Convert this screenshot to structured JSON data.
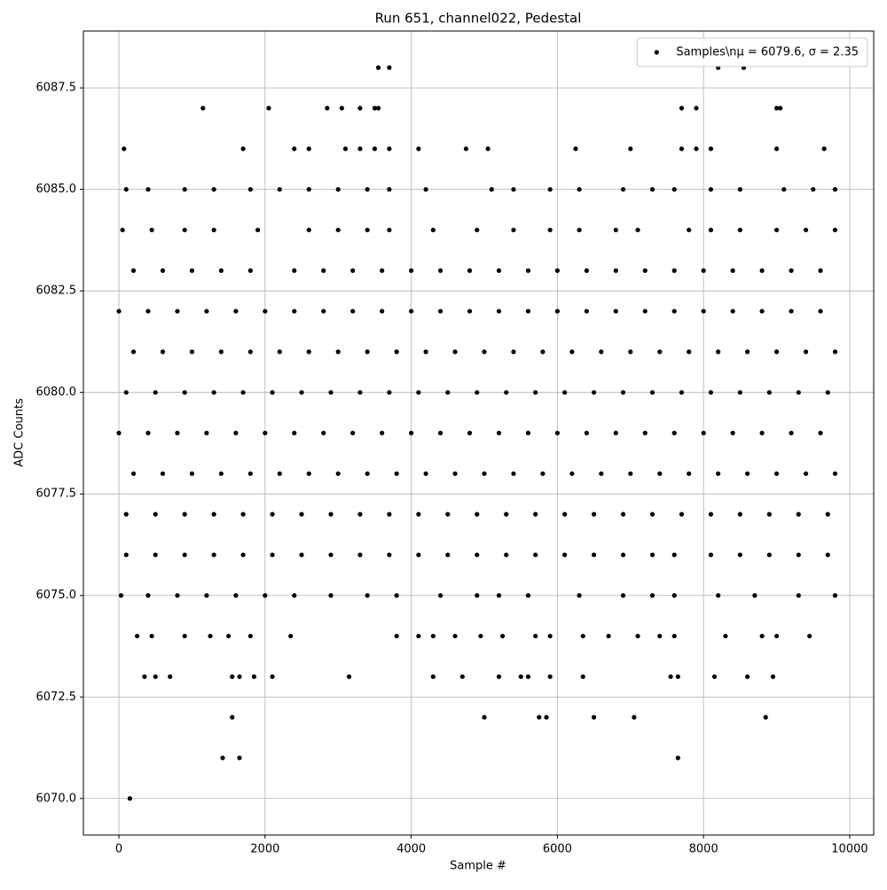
{
  "chart_data": {
    "type": "scatter",
    "title": "Run 651, channel022, Pedestal",
    "xlabel": "Sample #",
    "ylabel": "ADC Counts",
    "series": [
      {
        "name": "Samples\\nμ = 6079.6, σ = 2.35",
        "color": "#000000",
        "x": [
          0,
          400,
          800,
          1200,
          1600,
          2000,
          2400,
          2800,
          3200,
          3600,
          4000,
          4400,
          4800,
          5200,
          5600,
          6000,
          6400,
          6800,
          7200,
          7600,
          8000,
          8400,
          8800,
          9200,
          9600,
          200,
          600,
          1000,
          1400,
          1800,
          2200,
          2600,
          3000,
          3400,
          3800,
          4200,
          4600,
          5000,
          5400,
          5800,
          6200,
          6600,
          7000,
          7400,
          7800,
          8200,
          8600,
          9000,
          9400,
          9800,
          100,
          500,
          900,
          1300,
          1700,
          2100,
          2500,
          2900,
          3300,
          3700,
          4100,
          4500,
          4900,
          5300,
          5700,
          6100,
          6500,
          6900,
          7300,
          7700,
          8100,
          8500,
          8900,
          9300,
          9700,
          0,
          400,
          800,
          1200,
          1600,
          2000,
          2400,
          2800,
          3200,
          3600,
          4000,
          4400,
          4800,
          5200,
          5600,
          6000,
          6400,
          6800,
          7200,
          7600,
          8000,
          8400,
          8800,
          9200,
          9600,
          200,
          600,
          1000,
          1400,
          1800,
          2200,
          2600,
          3000,
          3400,
          3800,
          4200,
          4600,
          5000,
          5400,
          5800,
          6200,
          6600,
          7000,
          7400,
          7800,
          8200,
          8600,
          9000,
          9400,
          9800,
          100,
          500,
          900,
          1300,
          1700,
          2100,
          2500,
          2900,
          3300,
          3700,
          4100,
          4500,
          4900,
          5300,
          5700,
          6100,
          6500,
          6900,
          7300,
          7700,
          8100,
          8500,
          8900,
          9300,
          9700,
          100,
          500,
          900,
          1300,
          1700,
          2100,
          2500,
          2900,
          3300,
          3700,
          4100,
          4500,
          4900,
          5300,
          5700,
          6100,
          6500,
          6900,
          7300,
          7600,
          8100,
          8500,
          8900,
          9300,
          9700,
          200,
          600,
          1000,
          1400,
          1800,
          2400,
          2800,
          3200,
          3600,
          4000,
          4400,
          4800,
          5200,
          5600,
          6000,
          6400,
          6800,
          7200,
          7600,
          8000,
          8400,
          8800,
          9200,
          9600,
          50,
          450,
          900,
          1300,
          1900,
          2600,
          3000,
          3400,
          3700,
          4300,
          4900,
          5400,
          5900,
          6300,
          6800,
          7100,
          7800,
          8100,
          8500,
          9000,
          9400,
          9800,
          30,
          400,
          800,
          1200,
          1600,
          2000,
          2400,
          2900,
          3400,
          3800,
          4400,
          4900,
          5200,
          5600,
          6300,
          6900,
          7300,
          7600,
          8200,
          8700,
          9300,
          9800,
          100,
          400,
          900,
          1300,
          1800,
          2200,
          2600,
          3000,
          3400,
          3700,
          4200,
          5100,
          5400,
          5900,
          6300,
          6900,
          7300,
          7600,
          8100,
          8500,
          9100,
          9500,
          9800,
          250,
          450,
          900,
          1250,
          1500,
          1800,
          2350,
          3800,
          4100,
          4300,
          4600,
          4950,
          5250,
          5700,
          5900,
          6350,
          6700,
          7100,
          7400,
          7600,
          8300,
          8800,
          9000,
          9450,
          350,
          500,
          700,
          1550,
          1650,
          1850,
          2100,
          3150,
          4300,
          4700,
          5200,
          5500,
          5600,
          5900,
          6350,
          7550,
          7650,
          8150,
          8600,
          8950,
          70,
          1700,
          2400,
          2600,
          3100,
          3300,
          3500,
          3700,
          4100,
          4750,
          5050,
          6250,
          7000,
          7700,
          7900,
          8100,
          9000,
          9650,
          1150,
          2050,
          2850,
          3050,
          3300,
          3500,
          3550,
          7700,
          7900,
          9000,
          9050,
          3550,
          3700,
          8200,
          8550,
          1550,
          5000,
          5750,
          5850,
          6500,
          7050,
          8850,
          1420,
          1650,
          7650,
          150
        ],
        "y": [
          6082,
          6082,
          6082,
          6082,
          6082,
          6082,
          6082,
          6082,
          6082,
          6082,
          6082,
          6082,
          6082,
          6082,
          6082,
          6082,
          6082,
          6082,
          6082,
          6082,
          6082,
          6082,
          6082,
          6082,
          6082,
          6081,
          6081,
          6081,
          6081,
          6081,
          6081,
          6081,
          6081,
          6081,
          6081,
          6081,
          6081,
          6081,
          6081,
          6081,
          6081,
          6081,
          6081,
          6081,
          6081,
          6081,
          6081,
          6081,
          6081,
          6081,
          6080,
          6080,
          6080,
          6080,
          6080,
          6080,
          6080,
          6080,
          6080,
          6080,
          6080,
          6080,
          6080,
          6080,
          6080,
          6080,
          6080,
          6080,
          6080,
          6080,
          6080,
          6080,
          6080,
          6080,
          6080,
          6079,
          6079,
          6079,
          6079,
          6079,
          6079,
          6079,
          6079,
          6079,
          6079,
          6079,
          6079,
          6079,
          6079,
          6079,
          6079,
          6079,
          6079,
          6079,
          6079,
          6079,
          6079,
          6079,
          6079,
          6079,
          6078,
          6078,
          6078,
          6078,
          6078,
          6078,
          6078,
          6078,
          6078,
          6078,
          6078,
          6078,
          6078,
          6078,
          6078,
          6078,
          6078,
          6078,
          6078,
          6078,
          6078,
          6078,
          6078,
          6078,
          6078,
          6077,
          6077,
          6077,
          6077,
          6077,
          6077,
          6077,
          6077,
          6077,
          6077,
          6077,
          6077,
          6077,
          6077,
          6077,
          6077,
          6077,
          6077,
          6077,
          6077,
          6077,
          6077,
          6077,
          6077,
          6077,
          6076,
          6076,
          6076,
          6076,
          6076,
          6076,
          6076,
          6076,
          6076,
          6076,
          6076,
          6076,
          6076,
          6076,
          6076,
          6076,
          6076,
          6076,
          6076,
          6076,
          6076,
          6076,
          6076,
          6076,
          6076,
          6083,
          6083,
          6083,
          6083,
          6083,
          6083,
          6083,
          6083,
          6083,
          6083,
          6083,
          6083,
          6083,
          6083,
          6083,
          6083,
          6083,
          6083,
          6083,
          6083,
          6083,
          6083,
          6083,
          6083,
          6084,
          6084,
          6084,
          6084,
          6084,
          6084,
          6084,
          6084,
          6084,
          6084,
          6084,
          6084,
          6084,
          6084,
          6084,
          6084,
          6084,
          6084,
          6084,
          6084,
          6084,
          6084,
          6075,
          6075,
          6075,
          6075,
          6075,
          6075,
          6075,
          6075,
          6075,
          6075,
          6075,
          6075,
          6075,
          6075,
          6075,
          6075,
          6075,
          6075,
          6075,
          6075,
          6075,
          6075,
          6085,
          6085,
          6085,
          6085,
          6085,
          6085,
          6085,
          6085,
          6085,
          6085,
          6085,
          6085,
          6085,
          6085,
          6085,
          6085,
          6085,
          6085,
          6085,
          6085,
          6085,
          6085,
          6085,
          6074,
          6074,
          6074,
          6074,
          6074,
          6074,
          6074,
          6074,
          6074,
          6074,
          6074,
          6074,
          6074,
          6074,
          6074,
          6074,
          6074,
          6074,
          6074,
          6074,
          6074,
          6074,
          6074,
          6074,
          6073,
          6073,
          6073,
          6073,
          6073,
          6073,
          6073,
          6073,
          6073,
          6073,
          6073,
          6073,
          6073,
          6073,
          6073,
          6073,
          6073,
          6073,
          6073,
          6073,
          6086,
          6086,
          6086,
          6086,
          6086,
          6086,
          6086,
          6086,
          6086,
          6086,
          6086,
          6086,
          6086,
          6086,
          6086,
          6086,
          6086,
          6086,
          6087,
          6087,
          6087,
          6087,
          6087,
          6087,
          6087,
          6087,
          6087,
          6087,
          6087,
          6088,
          6088,
          6088,
          6088,
          6072,
          6072,
          6072,
          6072,
          6072,
          6072,
          6072,
          6071,
          6071,
          6071,
          6070
        ]
      }
    ],
    "xlim": [
      -486,
      10328
    ],
    "xticks": [
      0,
      2000,
      4000,
      6000,
      8000,
      10000
    ],
    "ylim": [
      6069.1,
      6088.9
    ],
    "yticks": [
      {
        "value": 6070,
        "label": "6070.0"
      },
      {
        "value": 6072.5,
        "label": "6072.5"
      },
      {
        "value": 6075,
        "label": "6075.0"
      },
      {
        "value": 6077.5,
        "label": "6077.5"
      },
      {
        "value": 6080,
        "label": "6080.0"
      },
      {
        "value": 6082.5,
        "label": "6082.5"
      },
      {
        "value": 6085,
        "label": "6085.0"
      },
      {
        "value": 6087.5,
        "label": "6087.5"
      }
    ],
    "grid": true,
    "legend": "upper right"
  }
}
